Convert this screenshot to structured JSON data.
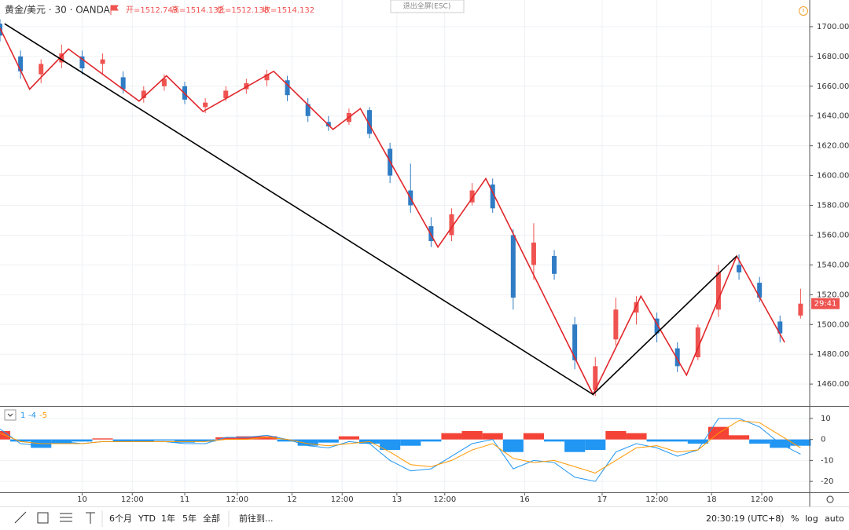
{
  "chart_data": [
    {
      "type": "candlestick",
      "title": "黄金/美元 · 30 · OANDA",
      "ohlc_labels": [
        "开=1512.743",
        "高=1514.132",
        "低=1512.138",
        "收=1514.132"
      ],
      "countdown": "29:41",
      "up_color": "#ef5350",
      "down_color": "#2f7bc4",
      "grid": true,
      "x": [
        0,
        9,
        18,
        27,
        36,
        45,
        54,
        63,
        72,
        81,
        90,
        99,
        108,
        117,
        126,
        135,
        144,
        153,
        162,
        171,
        180,
        189,
        198,
        207,
        216,
        225,
        234,
        243,
        252,
        261,
        270,
        279,
        288,
        297,
        306,
        315,
        324,
        333,
        342,
        351
      ],
      "open": [
        1702,
        1680,
        1668,
        1676,
        1680,
        1675,
        1666,
        1652,
        1660,
        1660,
        1646,
        1652,
        1658,
        1664,
        1664,
        1648,
        1636,
        1636,
        1644,
        1618,
        1590,
        1566,
        1560,
        1582,
        1594,
        1560,
        1540,
        1546,
        1500,
        1456,
        1490,
        1508,
        1504,
        1484,
        1478,
        1510,
        1540,
        1528,
        1502,
        1506
      ],
      "high": [
        1705,
        1684,
        1678,
        1688,
        1684,
        1682,
        1670,
        1660,
        1668,
        1663,
        1652,
        1660,
        1665,
        1671,
        1667,
        1652,
        1640,
        1645,
        1646,
        1622,
        1608,
        1572,
        1578,
        1595,
        1598,
        1564,
        1568,
        1550,
        1505,
        1478,
        1518,
        1519,
        1508,
        1488,
        1500,
        1540,
        1547,
        1532,
        1506,
        1524
      ],
      "low": [
        1690,
        1665,
        1662,
        1672,
        1668,
        1668,
        1655,
        1649,
        1657,
        1648,
        1642,
        1650,
        1655,
        1660,
        1650,
        1636,
        1630,
        1634,
        1625,
        1595,
        1575,
        1552,
        1556,
        1580,
        1575,
        1510,
        1530,
        1530,
        1470,
        1452,
        1486,
        1500,
        1488,
        1468,
        1476,
        1505,
        1530,
        1515,
        1488,
        1504
      ],
      "close": [
        1694,
        1670,
        1675,
        1682,
        1672,
        1678,
        1658,
        1657,
        1665,
        1651,
        1649,
        1657,
        1662,
        1668,
        1654,
        1640,
        1633,
        1642,
        1628,
        1600,
        1580,
        1556,
        1574,
        1590,
        1578,
        1518,
        1555,
        1534,
        1476,
        1472,
        1510,
        1515,
        1494,
        1472,
        1498,
        1535,
        1535,
        1518,
        1494,
        1514
      ],
      "lines": [
        {
          "color": "#e0262b",
          "x": [
            0,
            13,
            30,
            61,
            73,
            89,
            120,
            146,
            158,
            192,
            213,
            260,
            281,
            301,
            323,
            344
          ],
          "values": [
            1699,
            1658,
            1685,
            1650,
            1667,
            1643,
            1670,
            1631,
            1645,
            1552,
            1598,
            1453,
            1519,
            1466,
            1546,
            1488
          ]
        },
        {
          "color": "#000000",
          "x": [
            2,
            260,
            323
          ],
          "values": [
            1702,
            1453,
            1546
          ]
        }
      ],
      "xlim": [
        0,
        355
      ],
      "xticks": [
        {
          "value": 36,
          "label": "10"
        },
        {
          "value": 58,
          "label": "12:00"
        },
        {
          "value": 81,
          "label": "11"
        },
        {
          "value": 104,
          "label": "12:00"
        },
        {
          "value": 128,
          "label": "12"
        },
        {
          "value": 150,
          "label": "12:00"
        },
        {
          "value": 174,
          "label": "13"
        },
        {
          "value": 195,
          "label": "12:00"
        },
        {
          "value": 230,
          "label": "16"
        },
        {
          "value": 264,
          "label": "17"
        },
        {
          "value": 288,
          "label": "12:00"
        },
        {
          "value": 312,
          "label": "18"
        },
        {
          "value": 334,
          "label": "12:00"
        }
      ],
      "ylim": [
        1445.3,
        1717.9
      ],
      "yticks": [
        {
          "value": 1460,
          "label": "1460.000"
        },
        {
          "value": 1480,
          "label": "1480.000"
        },
        {
          "value": 1500,
          "label": "1500.000"
        },
        {
          "value": 1520,
          "label": "1520.000"
        },
        {
          "value": 1540,
          "label": "1540.000"
        },
        {
          "value": 1560,
          "label": "1560.000"
        },
        {
          "value": 1580,
          "label": "1580.000"
        },
        {
          "value": 1600,
          "label": "1600.000"
        },
        {
          "value": 1620,
          "label": "1620.000"
        },
        {
          "value": 1640,
          "label": "1640.000"
        },
        {
          "value": 1660,
          "label": "1660.000"
        },
        {
          "value": 1680,
          "label": "1680.000"
        },
        {
          "value": 1700,
          "label": "1700.000"
        }
      ]
    },
    {
      "type": "macd",
      "x": [
        0,
        9,
        18,
        27,
        36,
        45,
        54,
        63,
        72,
        81,
        90,
        99,
        108,
        117,
        126,
        135,
        144,
        153,
        162,
        171,
        180,
        189,
        198,
        207,
        216,
        225,
        234,
        243,
        252,
        261,
        270,
        279,
        288,
        297,
        306,
        315,
        324,
        333,
        342,
        351
      ],
      "histogram": {
        "pos_color": "#f44336",
        "neg_color": "#2196f3",
        "values": [
          4,
          -1,
          -4,
          -2,
          -1,
          0.5,
          -1,
          -1,
          -0.5,
          -1.5,
          -1,
          1,
          1.5,
          1.5,
          -1,
          -3,
          -1.5,
          1.5,
          -2,
          -5,
          -3,
          -1,
          3,
          4,
          3,
          -6,
          3,
          -1,
          -6,
          -5,
          4,
          3,
          -1,
          -1,
          -2,
          6,
          2,
          -2,
          -4,
          -3
        ]
      },
      "series": [
        {
          "name": "-4",
          "color": "#2196f3",
          "values": [
            5,
            -2,
            -3,
            -1,
            -2,
            -1,
            -1,
            -1,
            -1,
            -2,
            -2,
            1,
            1,
            2,
            0,
            -3,
            -4,
            -1,
            -2,
            -10,
            -15,
            -14,
            -8,
            -2,
            0,
            -14,
            -10,
            -11,
            -18,
            -20,
            -6,
            -2,
            -4,
            -8,
            -5,
            10,
            10,
            6,
            -2,
            -7
          ]
        },
        {
          "name": "-5",
          "color": "#ff9800",
          "values": [
            3,
            -1,
            -2,
            -2,
            -2,
            -1,
            -1,
            -1,
            -1,
            -1,
            -1,
            0,
            0,
            1,
            0,
            -2,
            -3,
            -2,
            -1,
            -6,
            -12,
            -13,
            -10,
            -5,
            -2,
            -9,
            -11,
            -10,
            -13,
            -16,
            -10,
            -4,
            -3,
            -6,
            -5,
            3,
            9,
            8,
            2,
            -4
          ]
        }
      ],
      "legend_first": "1",
      "xlim": [
        0,
        355
      ],
      "ylim": [
        -25.2,
        15.6
      ],
      "yticks": [
        -20,
        -10,
        0,
        10
      ]
    }
  ],
  "toolbar": {
    "ranges": [
      "6个月",
      "YTD",
      "1年",
      "5年",
      "全部"
    ],
    "goto": "前往到...",
    "clock": "20:30:19 (UTC+8)",
    "percent": "%",
    "log": "log",
    "auto": "auto"
  },
  "exit_fullscreen": "退出全屏(ESC)"
}
